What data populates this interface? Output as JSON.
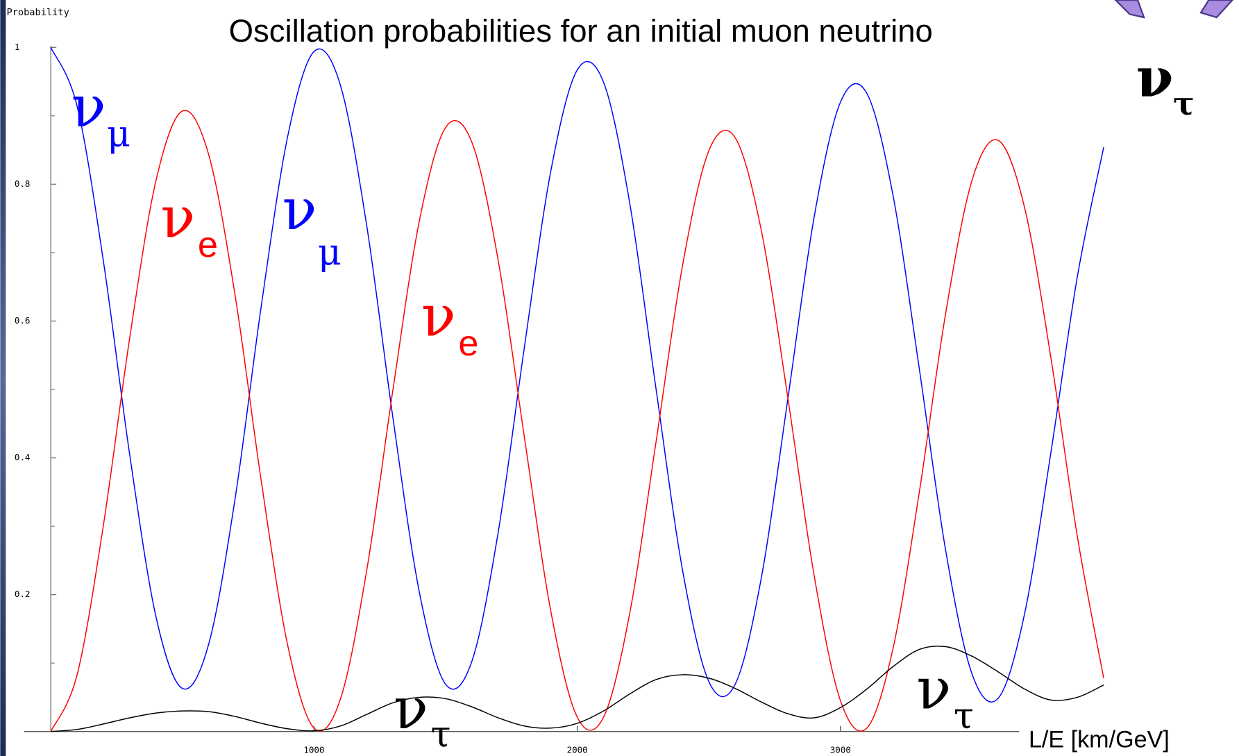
{
  "chart_data": {
    "type": "line",
    "title": "Oscillation probabilities for an initial muon neutrino",
    "y_label": "Probability",
    "x_label": "L/E   [km/GeV]",
    "x": [
      0,
      100,
      200,
      300,
      400,
      500,
      600,
      700,
      800,
      900,
      1000,
      1100,
      1200,
      1300,
      1400,
      1500,
      1600,
      1700,
      1800,
      1900,
      2000,
      2100,
      2200,
      2300,
      2400,
      2500,
      2600,
      2700,
      2800,
      2900,
      3000,
      3100,
      3200,
      3300,
      3400,
      3500,
      3600,
      3700,
      3800,
      3900,
      4000
    ],
    "series": [
      {
        "color": "#0000ff",
        "values": [
          1,
          0.914,
          0.687,
          0.404,
          0.167,
          0.063,
          0.128,
          0.34,
          0.623,
          0.87,
          0.994,
          0.945,
          0.74,
          0.458,
          0.204,
          0.069,
          0.103,
          0.292,
          0.564,
          0.82,
          0.967,
          0.949,
          0.771,
          0.499,
          0.236,
          0.073,
          0.069,
          0.226,
          0.486,
          0.752,
          0.92,
          0.933,
          0.783,
          0.529,
          0.264,
          0.084,
          0.049,
          0.173,
          0.409,
          0.665,
          0.854
        ]
      },
      {
        "color": "#ff0000",
        "values": [
          0,
          0.083,
          0.302,
          0.576,
          0.806,
          0.907,
          0.843,
          0.638,
          0.365,
          0.126,
          0.005,
          0.047,
          0.235,
          0.5,
          0.746,
          0.883,
          0.861,
          0.688,
          0.428,
          0.175,
          0.021,
          0.021,
          0.174,
          0.425,
          0.681,
          0.849,
          0.868,
          0.731,
          0.488,
          0.228,
          0.045,
          0.005,
          0.122,
          0.351,
          0.612,
          0.806,
          0.864,
          0.765,
          0.545,
          0.285,
          0.078
        ]
      },
      {
        "color": "#000000",
        "values": [
          0,
          0.003,
          0.011,
          0.02,
          0.027,
          0.03,
          0.029,
          0.022,
          0.012,
          0.004,
          0.001,
          0.008,
          0.025,
          0.042,
          0.05,
          0.048,
          0.036,
          0.02,
          0.008,
          0.005,
          0.012,
          0.03,
          0.055,
          0.076,
          0.083,
          0.078,
          0.063,
          0.043,
          0.026,
          0.02,
          0.035,
          0.062,
          0.095,
          0.12,
          0.124,
          0.11,
          0.087,
          0.062,
          0.046,
          0.05,
          0.068
        ]
      }
    ],
    "xlim": [
      0,
      4000
    ],
    "ylim": [
      0,
      1
    ],
    "xticks": [
      1000,
      2000,
      3000
    ],
    "yticks": [
      0.2,
      0.4,
      0.6,
      0.8,
      1
    ],
    "yminorticks": [
      0.1,
      0.3,
      0.5,
      0.7,
      0.9
    ],
    "annotations": [
      {
        "symbol": "ν",
        "subscript": "μ",
        "color": "#0000ff"
      },
      {
        "symbol": "ν",
        "subscript": "e",
        "color": "#ff0000"
      },
      {
        "symbol": "ν",
        "subscript": "μ",
        "color": "#0000ff"
      },
      {
        "symbol": "ν",
        "subscript": "e",
        "color": "#ff0000"
      },
      {
        "symbol": "ν",
        "subscript": "τ",
        "color": "#000000"
      },
      {
        "symbol": "ν",
        "subscript": "τ",
        "color": "#000000"
      },
      {
        "symbol": "ν",
        "subscript": "τ",
        "color": "#000000"
      }
    ]
  }
}
